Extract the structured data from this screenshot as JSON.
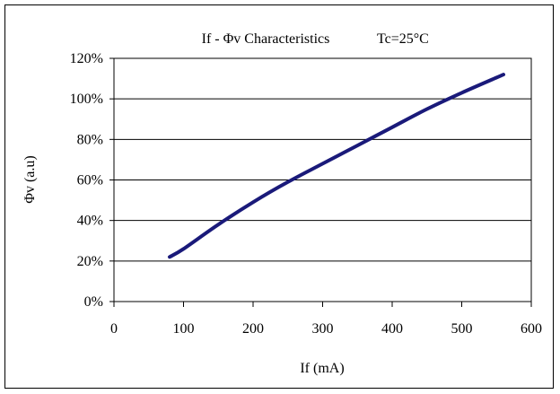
{
  "chart_data": {
    "type": "line",
    "title": "If - Φv Characteristics",
    "condition": "Tc=25°C",
    "xlabel": "If (mA)",
    "ylabel": "Φv (a.u)",
    "xlim": [
      0,
      600
    ],
    "ylim": [
      0,
      120
    ],
    "x_ticks": [
      0,
      100,
      200,
      300,
      400,
      500,
      600
    ],
    "x_tick_labels": [
      "0",
      "100",
      "200",
      "300",
      "400",
      "500",
      "600"
    ],
    "y_ticks": [
      0,
      20,
      40,
      60,
      80,
      100,
      120
    ],
    "y_tick_labels": [
      "0%",
      "20%",
      "40%",
      "60%",
      "80%",
      "100%",
      "120%"
    ],
    "grid": "horizontal",
    "line_color": "#1a1a7a",
    "series": [
      {
        "x": [
          80,
          100,
          150,
          200,
          250,
          300,
          350,
          400,
          450,
          500,
          560
        ],
        "values": [
          22,
          26,
          38,
          49,
          59,
          68,
          77,
          86,
          95,
          103,
          112
        ]
      }
    ]
  }
}
